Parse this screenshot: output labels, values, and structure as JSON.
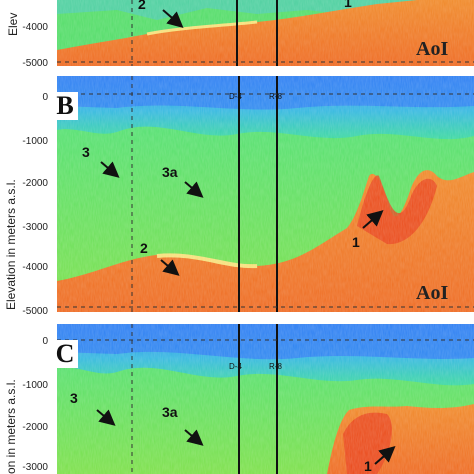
{
  "panel_a": {
    "ticks": [
      "-4000",
      "-5000"
    ],
    "ylabel": "Elev",
    "region_2": "2",
    "region_1": "1",
    "aoi": "AoI"
  },
  "panel_b": {
    "label": "B",
    "ticks": [
      "0",
      "-1000",
      "-2000",
      "-3000",
      "-4000",
      "-5000"
    ],
    "ylabel": "Elevation in meters a.s.l.",
    "region_3": "3",
    "region_3a": "3a",
    "region_2": "2",
    "region_1": "1",
    "aoi": "AoI",
    "well_1": "D-4",
    "well_2": "R-8"
  },
  "panel_c": {
    "label": "C",
    "ticks": [
      "0",
      "-1000",
      "-2000",
      "-3000"
    ],
    "ylabel": "on in meters a.s.l.",
    "region_3": "3",
    "region_3a": "3a",
    "region_1": "1",
    "well_1": "D-4",
    "well_2": "R-8"
  },
  "colors": {
    "low": "#3a8cf0",
    "mid": "#3fe070",
    "high": "#f07a2a",
    "peak": "#e8411a"
  }
}
